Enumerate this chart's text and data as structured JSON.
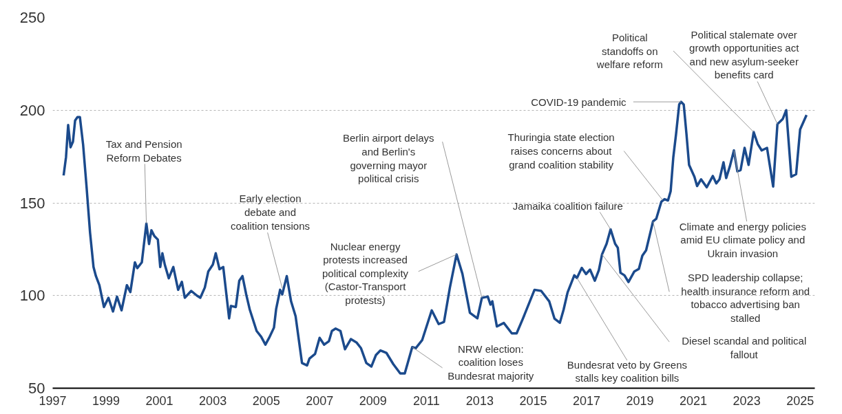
{
  "chart_data": {
    "type": "line",
    "x": [
      1997.41,
      1997.5,
      1997.58,
      1997.67,
      1997.76,
      1997.84,
      1997.93,
      1998.02,
      1998.14,
      1998.27,
      1998.4,
      1998.53,
      1998.62,
      1998.75,
      1998.92,
      1999.09,
      1999.26,
      1999.41,
      1999.58,
      1999.78,
      1999.91,
      2000.08,
      2000.17,
      2000.34,
      2000.51,
      2000.61,
      2000.7,
      2000.81,
      2000.94,
      2001.03,
      2001.11,
      2001.2,
      2001.35,
      2001.52,
      2001.7,
      2001.84,
      2001.95,
      2002.19,
      2002.4,
      2002.53,
      2002.7,
      2002.83,
      2003.0,
      2003.11,
      2003.25,
      2003.39,
      2003.61,
      2003.68,
      2003.86,
      2003.99,
      2004.11,
      2004.25,
      2004.38,
      2004.64,
      2004.81,
      2004.97,
      2005.11,
      2005.29,
      2005.37,
      2005.52,
      2005.6,
      2005.77,
      2005.93,
      2006.1,
      2006.34,
      2006.53,
      2006.62,
      2006.83,
      2007.0,
      2007.17,
      2007.35,
      2007.46,
      2007.6,
      2007.78,
      2007.95,
      2008.17,
      2008.38,
      2008.55,
      2008.75,
      2008.94,
      2009.11,
      2009.28,
      2009.5,
      2009.76,
      2010.02,
      2010.19,
      2010.47,
      2010.6,
      2010.84,
      2011.2,
      2011.46,
      2011.66,
      2011.88,
      2012.13,
      2012.35,
      2012.63,
      2012.91,
      2013.08,
      2013.3,
      2013.4,
      2013.47,
      2013.64,
      2013.9,
      2014.2,
      2014.38,
      2014.62,
      2015.05,
      2015.3,
      2015.6,
      2015.8,
      2016.0,
      2016.14,
      2016.29,
      2016.54,
      2016.64,
      2016.82,
      2016.98,
      2017.13,
      2017.31,
      2017.46,
      2017.58,
      2017.75,
      2017.9,
      2018.07,
      2018.17,
      2018.27,
      2018.42,
      2018.57,
      2018.79,
      2018.96,
      2019.09,
      2019.23,
      2019.49,
      2019.61,
      2019.8,
      2019.92,
      2020.05,
      2020.15,
      2020.25,
      2020.35,
      2020.47,
      2020.54,
      2020.64,
      2020.74,
      2020.84,
      2021.04,
      2021.14,
      2021.29,
      2021.5,
      2021.73,
      2021.86,
      2021.98,
      2022.13,
      2022.23,
      2022.37,
      2022.52,
      2022.65,
      2022.77,
      2022.92,
      2023.07,
      2023.26,
      2023.41,
      2023.56,
      2023.76,
      2023.99,
      2024.15,
      2024.35,
      2024.48,
      2024.67,
      2024.85,
      2025.0,
      2025.24
    ],
    "series": [
      {
        "color": "#1b4a8c",
        "values": [
          164.8,
          174.7,
          192,
          180,
          183,
          194.4,
          196.3,
          196.3,
          181.5,
          158.6,
          134,
          115.4,
          110.5,
          105.6,
          93.8,
          98.8,
          91.4,
          99.4,
          92,
          105.6,
          101.9,
          117.9,
          114.8,
          117.9,
          138.9,
          127.8,
          135.2,
          132.1,
          130.2,
          115.4,
          122.8,
          116.7,
          109.3,
          115.4,
          103.1,
          107.4,
          98.8,
          102.5,
          100,
          98.8,
          104.3,
          113,
          116.7,
          122.8,
          114.2,
          115.4,
          87.7,
          94.4,
          93.8,
          108,
          110.5,
          100.6,
          92.6,
          80.9,
          77.8,
          73.5,
          77.2,
          82.7,
          92.6,
          103.1,
          100.6,
          110.5,
          96.9,
          88.9,
          63.6,
          62.3,
          66,
          68.5,
          77.2,
          73.5,
          75.4,
          80.9,
          82.2,
          80.9,
          71,
          76.5,
          74.7,
          71.6,
          63.6,
          61.7,
          67.9,
          70.4,
          69.1,
          63,
          58,
          58,
          72.2,
          71.6,
          75.9,
          92,
          84.6,
          85.8,
          104.3,
          122.2,
          111.7,
          90.7,
          87.7,
          98.8,
          99.4,
          95.1,
          96.9,
          83.3,
          85.2,
          79.6,
          79.6,
          87.7,
          103.1,
          102.5,
          96.9,
          87.5,
          85.3,
          92.4,
          101.7,
          110.9,
          109.5,
          114.9,
          111.6,
          114,
          108,
          113.7,
          122.2,
          127.9,
          135.7,
          127.9,
          125.8,
          112.3,
          110.9,
          107.3,
          113,
          114.4,
          121.5,
          124.4,
          140,
          141.4,
          150.6,
          152,
          151.3,
          156.3,
          174.7,
          186.8,
          203.1,
          204.5,
          203.1,
          187.5,
          170.5,
          164.1,
          159.1,
          162.7,
          158.4,
          164.5,
          160.5,
          162.7,
          171.9,
          163.4,
          169.8,
          178.3,
          167,
          167.7,
          179.7,
          170.5,
          188.2,
          181.8,
          178.3,
          179.7,
          158.8,
          192.5,
          195.3,
          200,
          164.1,
          165.5,
          189.6,
          197.4
        ]
      }
    ],
    "xlim": [
      1997,
      2025.55
    ],
    "ylim": [
      50,
      250
    ],
    "xticks": [
      1997,
      1999,
      2001,
      2003,
      2005,
      2007,
      2009,
      2011,
      2013,
      2015,
      2017,
      2019,
      2021,
      2023,
      2025
    ],
    "yticks": [
      50,
      100,
      150,
      200,
      250
    ],
    "grid": "y",
    "annotations": [
      {
        "text": "Tax and Pension\nReform Debates",
        "x": 2000.51,
        "y": 138.9
      },
      {
        "text": "Early election\ndebate and\ncoalition tensions",
        "x": 2005.6,
        "y": 104
      },
      {
        "text": "Nuclear energy\nprotests increased\npolitical complexity\n(Castor-Transport\nprotests)",
        "x": 2012.13,
        "y": 122.2
      },
      {
        "text": "Berlin airport delays\nand Berlin's\ngoverning mayor\npolitical crisis",
        "x": 2013.08,
        "y": 98.8
      },
      {
        "text": "NRW election:\ncoalition loses\nBundesrat majority",
        "x": 2010.47,
        "y": 72.2
      },
      {
        "text": "Thuringia state election\nraises concerns about\ngrand coalition stability",
        "x": 2019.85,
        "y": 151.5
      },
      {
        "text": "Jamaika coalition failure",
        "x": 2017.9,
        "y": 135.7
      },
      {
        "text": "COVID-19 pandemic",
        "x": 2020.54,
        "y": 204.5
      },
      {
        "text": "Political\nstandoffs on\nwelfare reform",
        "x": 2023.26,
        "y": 188.2
      },
      {
        "text": "Political stalemate over\ngrowth opportunities act\nand new asylum-seeker\nbenefits card",
        "x": 2024.15,
        "y": 192.5
      },
      {
        "text": "Climate and energy policies\namid EU climate policy and\nUkrain invasion",
        "x": 2022.52,
        "y": 178.3
      },
      {
        "text": "SPD leadership collapse;\nhealth insurance reform and\ntobacco advertising ban\nstalled",
        "x": 2019.49,
        "y": 140
      },
      {
        "text": "Diesel scandal and political\nfallout",
        "x": 2017.58,
        "y": 122.2
      },
      {
        "text": "Bundesrat veto by Greens\nstalls key coalition bills",
        "x": 2016.64,
        "y": 109.5
      }
    ]
  }
}
